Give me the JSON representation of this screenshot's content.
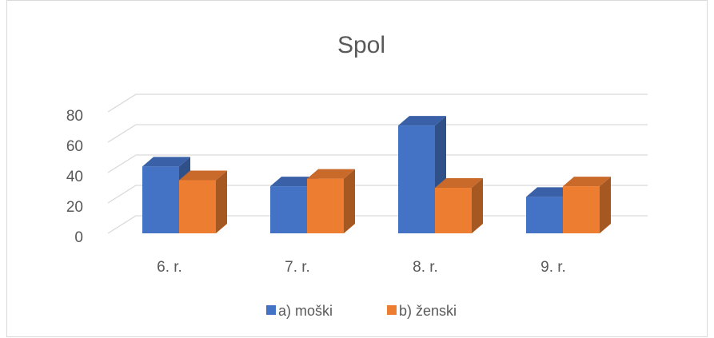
{
  "chart_data": {
    "type": "bar3d",
    "title": "Spol",
    "categories": [
      "6. r.",
      "7. r.",
      "8. r.",
      "9. r."
    ],
    "series": [
      {
        "name": "a) moški",
        "color": "#4472c4",
        "values": [
          44,
          31,
          71,
          24
        ]
      },
      {
        "name": "b) ženski",
        "color": "#ed7d31",
        "values": [
          35,
          36,
          30,
          31
        ]
      }
    ],
    "ylim": [
      0,
      80
    ],
    "yticks": [
      0,
      20,
      40,
      60,
      80
    ],
    "grid": true,
    "legend": "bottom"
  }
}
